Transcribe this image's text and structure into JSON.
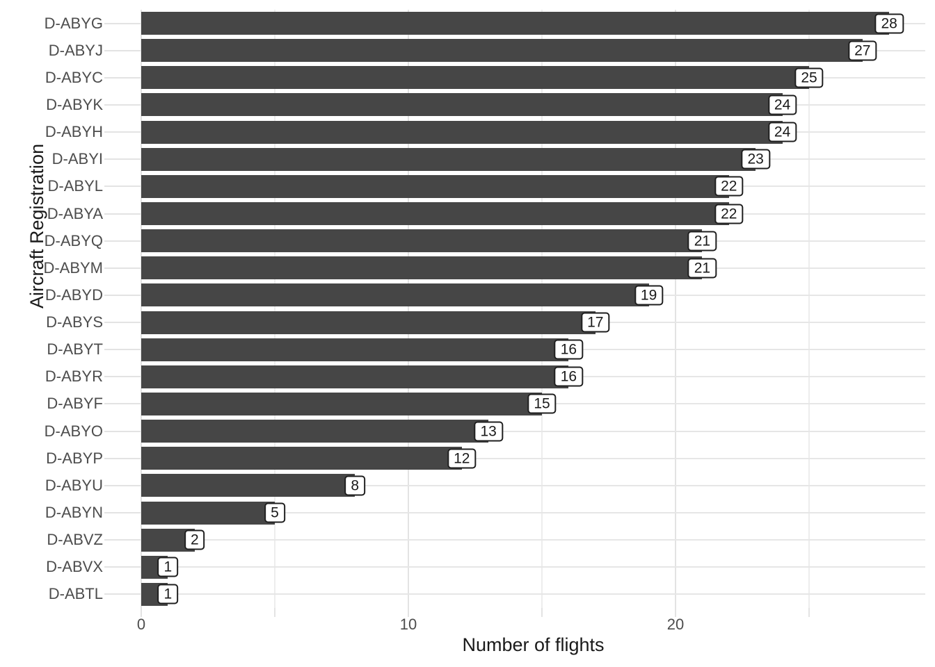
{
  "chart_data": {
    "type": "bar",
    "orientation": "horizontal",
    "xlabel": "Number of flights",
    "ylabel": "Aircraft Registration",
    "categories": [
      "D-ABYG",
      "D-ABYJ",
      "D-ABYC",
      "D-ABYK",
      "D-ABYH",
      "D-ABYI",
      "D-ABYL",
      "D-ABYA",
      "D-ABYQ",
      "D-ABYM",
      "D-ABYD",
      "D-ABYS",
      "D-ABYT",
      "D-ABYR",
      "D-ABYF",
      "D-ABYO",
      "D-ABYP",
      "D-ABYU",
      "D-ABYN",
      "D-ABVZ",
      "D-ABVX",
      "D-ABTL"
    ],
    "values": [
      28,
      27,
      25,
      24,
      24,
      23,
      22,
      22,
      21,
      21,
      19,
      17,
      16,
      16,
      15,
      13,
      12,
      8,
      5,
      2,
      1,
      1
    ],
    "value_labels": [
      "28",
      "27",
      "25",
      "24",
      "24",
      "23",
      "22",
      "22",
      "21",
      "21",
      "19",
      "17",
      "16",
      "16",
      "15",
      "13",
      "12",
      "8",
      "5",
      "2",
      "1",
      "1"
    ],
    "x_ticks": [
      0,
      10,
      20
    ],
    "x_tick_labels": [
      "0",
      "10",
      "20"
    ],
    "x_gridlines_major": [
      0,
      10,
      20
    ],
    "x_gridlines_minor": [
      5,
      15,
      25
    ],
    "xlim": [
      0,
      29.35
    ],
    "grid": true,
    "legend": "none",
    "style": {
      "bar_color": "#464646",
      "grid_major_color": "#e3e3e3",
      "grid_minor_color": "#ededed",
      "row_grid_color": "#e6e6e6",
      "axis_text_color": "#4d4d4d",
      "axis_title_color": "#1a1a1a",
      "label_bg": "#ffffff",
      "label_border": "#1f1f1f",
      "background": "#ffffff"
    }
  }
}
